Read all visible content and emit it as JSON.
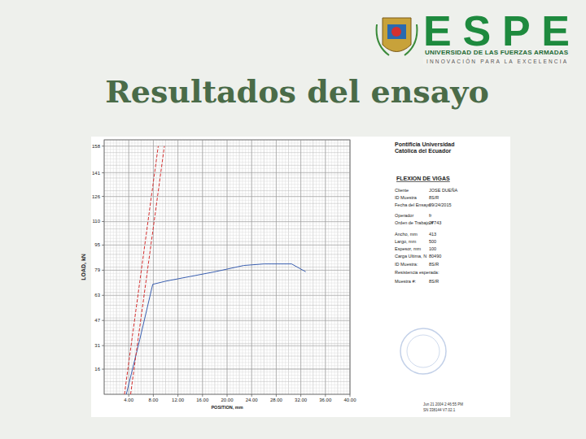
{
  "header": {
    "title": "Resultados del ensayo",
    "logo": {
      "name": "ESPE",
      "line1": "UNIVERSIDAD DE LAS FUERZAS ARMADAS",
      "line2": "INNOVACIÓN PARA LA EXCELENCIA"
    }
  },
  "report": {
    "institution": [
      "Pontificia Universidad",
      "Católica del Ecuador"
    ],
    "test": "FLEXION DE VIGAS",
    "rows": [
      {
        "label": "Cliente",
        "value": "JOSE DUEÑA"
      },
      {
        "label": "ID Muestra",
        "value": "8S/R"
      },
      {
        "label": "Fecha del Ensayo",
        "value": "09/24/2015"
      },
      {
        "label": "Operador",
        "value": "fr"
      },
      {
        "label": "Orden de Trabajo #",
        "value": "27743"
      },
      {
        "label": "Ancho, mm",
        "value": "413"
      },
      {
        "label": "Largo, mm",
        "value": "500"
      },
      {
        "label": "Espesor, mm",
        "value": "100"
      },
      {
        "label": "Carga Ultima, N",
        "value": "80490"
      },
      {
        "label": "ID Muestra:",
        "value": "8S/R"
      },
      {
        "label": "Resistencia esperada:"
      },
      {
        "label": "Muestra #:",
        "value": "8S/R"
      }
    ],
    "footer": [
      "Jun 21 2004 2:46:55 PM",
      "SN 338144   V7.02.1"
    ]
  },
  "chart_data": {
    "type": "line",
    "x_label": "POSITION, mm",
    "y_label": "LOAD, kN",
    "xlim": [
      0,
      40
    ],
    "ylim": [
      0,
      162
    ],
    "xticks": [
      {
        "value": 4,
        "label": "4.00"
      },
      {
        "value": 8,
        "label": "8.00"
      },
      {
        "value": 12,
        "label": "12.00"
      },
      {
        "value": 16,
        "label": "16.00"
      },
      {
        "value": 20,
        "label": "20.00"
      },
      {
        "value": 24,
        "label": "24.00"
      },
      {
        "value": 28,
        "label": "28.00"
      },
      {
        "value": 32,
        "label": "32.00"
      },
      {
        "value": 36,
        "label": "36.00"
      },
      {
        "value": 40,
        "label": "40.00"
      }
    ],
    "yticks": [
      16,
      31,
      47,
      63,
      79,
      95,
      110,
      126,
      141,
      158
    ],
    "grid": true,
    "series": [
      {
        "x": [
          3.6,
          5.8,
          7.9,
          10,
          14,
          18,
          22.7,
          26,
          30.5,
          32.8
        ],
        "values": [
          0,
          35,
          70,
          72,
          75,
          78,
          82,
          83,
          83,
          78
        ],
        "color": "#3a5fb0",
        "line_style": "solid"
      },
      {
        "x": [
          3.3,
          8.8
        ],
        "values": [
          0,
          158
        ],
        "color": "#d43030",
        "line_style": "dashed"
      },
      {
        "x": [
          4.3,
          9.8
        ],
        "values": [
          0,
          158
        ],
        "color": "#d43030",
        "line_style": "dashed"
      }
    ]
  }
}
